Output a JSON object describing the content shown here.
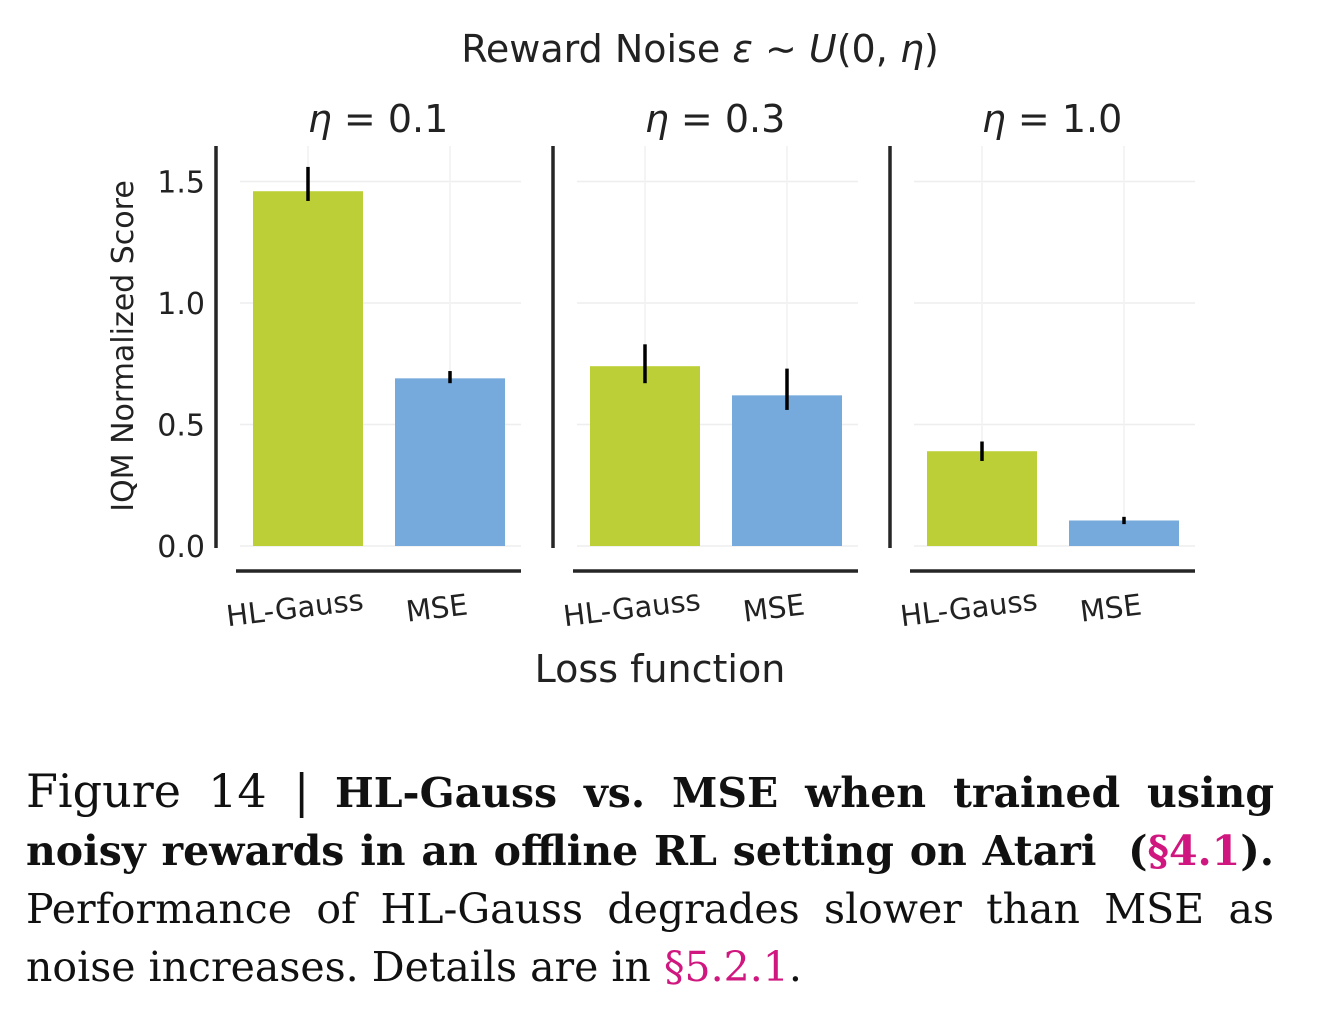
{
  "chart_data": {
    "type": "bar",
    "title": "Reward Noise ε ∼ U(0, η)",
    "title_parts": {
      "prefix": "Reward Noise ",
      "eps": "ε",
      "sim": " ∼ ",
      "u": "U",
      "open": "(0, ",
      "eta": "η",
      "close": ")"
    },
    "xlabel": "Loss function",
    "ylabel": "IQM Normalized Score",
    "ylim": [
      0,
      1.6
    ],
    "yticks": [
      0.0,
      0.5,
      1.0,
      1.5
    ],
    "ytick_labels": [
      "0.0",
      "0.5",
      "1.0",
      "1.5"
    ],
    "categories": [
      "HL-Gauss",
      "MSE"
    ],
    "colors": {
      "HL-Gauss": "#bccf36",
      "MSE": "#77aadc"
    },
    "grid": true,
    "panels": [
      {
        "title": "η = 0.1",
        "eta": "η",
        "rest": " = 0.1",
        "values": [
          1.46,
          0.69
        ],
        "errors": [
          [
            1.42,
            1.56
          ],
          [
            0.67,
            0.72
          ]
        ]
      },
      {
        "title": "η = 0.3",
        "eta": "η",
        "rest": " = 0.3",
        "values": [
          0.74,
          0.62
        ],
        "errors": [
          [
            0.67,
            0.83
          ],
          [
            0.56,
            0.73
          ]
        ]
      },
      {
        "title": "η = 1.0",
        "eta": "η",
        "rest": " = 1.0",
        "values": [
          0.39,
          0.105
        ],
        "errors": [
          [
            0.35,
            0.43
          ],
          [
            0.09,
            0.12
          ]
        ]
      }
    ]
  },
  "caption": {
    "figure_label": "Figure 14 |",
    "bold_text": "HL-Gauss vs. MSE when trained using noisy rewards in an offline RL setting on Atari",
    "bold_open": "(",
    "bold_ref": "§4.1",
    "bold_close": ").",
    "body_text": "Performance of HL-Gauss degrades slower than MSE as noise increases. Details are in",
    "body_ref": "§5.2.1",
    "body_end": "."
  }
}
